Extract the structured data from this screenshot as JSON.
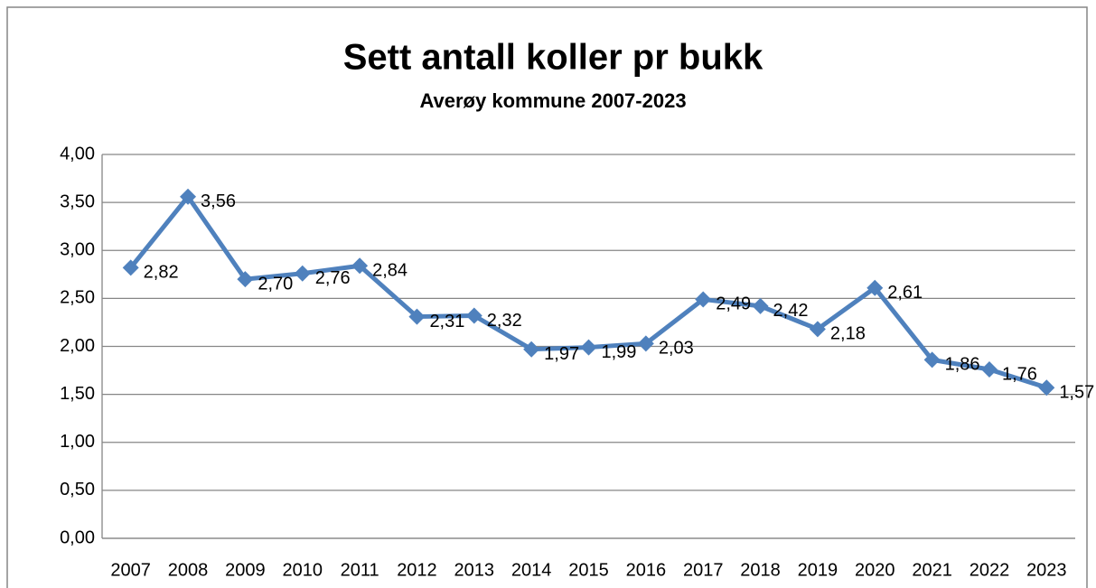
{
  "chart_data": {
    "type": "line",
    "title": "Sett antall koller pr bukk",
    "subtitle": "Averøy kommune 2007-2023",
    "categories": [
      "2007",
      "2008",
      "2009",
      "2010",
      "2011",
      "2012",
      "2013",
      "2014",
      "2015",
      "2016",
      "2017",
      "2018",
      "2019",
      "2020",
      "2021",
      "2022",
      "2023"
    ],
    "values": [
      2.82,
      3.56,
      2.7,
      2.76,
      2.84,
      2.31,
      2.32,
      1.97,
      1.99,
      2.03,
      2.49,
      2.42,
      2.18,
      2.61,
      1.86,
      1.76,
      1.57
    ],
    "value_labels": [
      "2,82",
      "3,56",
      "2,70",
      "2,76",
      "2,84",
      "2,31",
      "2,32",
      "1,97",
      "1,99",
      "2,03",
      "2,49",
      "2,42",
      "2,18",
      "2,61",
      "1,86",
      "1,76",
      "1,57"
    ],
    "color": "#4f81bd",
    "ylim": [
      0,
      4
    ],
    "yticks": [
      {
        "value": 0,
        "label": "0,00"
      },
      {
        "value": 0.5,
        "label": "0,50"
      },
      {
        "value": 1,
        "label": "1,00"
      },
      {
        "value": 1.5,
        "label": "1,50"
      },
      {
        "value": 2,
        "label": "2,00"
      },
      {
        "value": 2.5,
        "label": "2,50"
      },
      {
        "value": 3,
        "label": "3,00"
      },
      {
        "value": 3.5,
        "label": "3,50"
      },
      {
        "value": 4,
        "label": "4,00"
      }
    ],
    "grid": true
  }
}
